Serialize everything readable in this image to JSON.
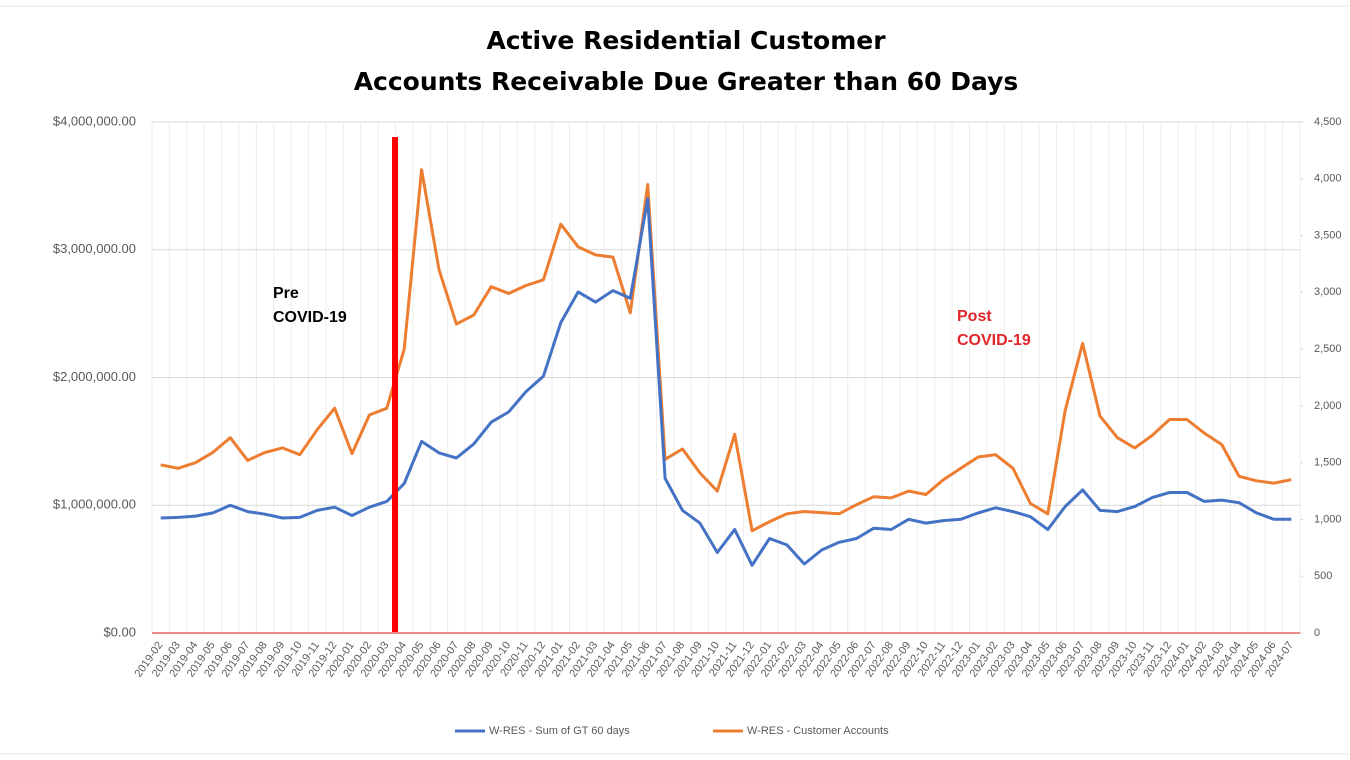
{
  "chart_data": {
    "type": "line",
    "title": [
      "Active Residential Customer",
      "Accounts Receivable Due Greater than 60 Days"
    ],
    "categories": [
      "2019-02",
      "2019-03",
      "2019-04",
      "2019-05",
      "2019-06",
      "2019-07",
      "2019-08",
      "2019-09",
      "2019-10",
      "2019-11",
      "2019-12",
      "2020-01",
      "2020-02",
      "2020-03",
      "2020-04",
      "2020-05",
      "2020-06",
      "2020-07",
      "2020-08",
      "2020-09",
      "2020-10",
      "2020-11",
      "2020-12",
      "2021-01",
      "2021-02",
      "2021-03",
      "2021-04",
      "2021-05",
      "2021-06",
      "2021-07",
      "2021-08",
      "2021-09",
      "2021-10",
      "2021-11",
      "2021-12",
      "2022-01",
      "2022-02",
      "2022-03",
      "2022-04",
      "2022-05",
      "2022-06",
      "2022-07",
      "2022-08",
      "2022-09",
      "2022-10",
      "2022-11",
      "2022-12",
      "2023-01",
      "2023-02",
      "2023-03",
      "2023-04",
      "2023-05",
      "2023-06",
      "2023-07",
      "2023-08",
      "2023-09",
      "2023-10",
      "2023-11",
      "2023-12",
      "2024-01",
      "2024-02",
      "2024-03",
      "2024-04",
      "2024-05",
      "2024-06",
      "2024-07"
    ],
    "series": [
      {
        "name": "W-RES - Sum of GT 60 days",
        "color": "#4472c4",
        "axis": "y",
        "values": [
          900000,
          905000,
          915000,
          940000,
          1000000,
          950000,
          930000,
          900000,
          905000,
          960000,
          985000,
          920000,
          985000,
          1030000,
          1170000,
          1500000,
          1410000,
          1370000,
          1480000,
          1650000,
          1730000,
          1890000,
          2010000,
          2430000,
          2670000,
          2590000,
          2680000,
          2620000,
          3400000,
          1210000,
          960000,
          860000,
          630000,
          810000,
          530000,
          740000,
          690000,
          540000,
          650000,
          710000,
          740000,
          820000,
          810000,
          890000,
          860000,
          880000,
          890000,
          940000,
          980000,
          950000,
          910000,
          810000,
          990000,
          1120000,
          960000,
          950000,
          990000,
          1060000,
          1100000,
          1100000,
          1030000,
          1040000,
          1020000,
          940000,
          890000,
          890000
        ]
      },
      {
        "name": "W-RES - Customer Accounts",
        "color": "#ed7d31",
        "axis": "y2",
        "values": [
          1480,
          1450,
          1500,
          1590,
          1720,
          1520,
          1590,
          1630,
          1570,
          1790,
          1980,
          1580,
          1920,
          1980,
          2500,
          4080,
          3200,
          2720,
          2800,
          3050,
          2990,
          3060,
          3110,
          3600,
          3400,
          3330,
          3310,
          2820,
          3950,
          1530,
          1620,
          1410,
          1250,
          1750,
          900,
          980,
          1050,
          1070,
          1060,
          1050,
          1130,
          1200,
          1190,
          1250,
          1220,
          1350,
          1450,
          1550,
          1570,
          1450,
          1140,
          1050,
          1960,
          2550,
          1910,
          1720,
          1630,
          1740,
          1880,
          1880,
          1760,
          1660,
          1380,
          1340,
          1320,
          1350
        ]
      }
    ],
    "ylim": [
      0,
      4000000
    ],
    "yticks": [
      {
        "value": 0,
        "label": "$0.00"
      },
      {
        "value": 1000000,
        "label": "$1,000,000.00"
      },
      {
        "value": 2000000,
        "label": "$2,000,000.00"
      },
      {
        "value": 3000000,
        "label": "$3,000,000.00"
      },
      {
        "value": 4000000,
        "label": "$4,000,000.00"
      }
    ],
    "y2lim": [
      0,
      4500
    ],
    "y2ticks": [
      0,
      500,
      {
        "value": 1000,
        "label": "1,000"
      },
      {
        "value": 1500,
        "label": "1,500"
      },
      {
        "value": 2000,
        "label": "2,000"
      },
      {
        "value": 2500,
        "label": "2,500"
      },
      {
        "value": 3000,
        "label": "3,000"
      },
      {
        "value": 3500,
        "label": "3,500"
      },
      {
        "value": 4000,
        "label": "4,000"
      },
      {
        "value": 4500,
        "label": "4,500"
      }
    ],
    "grid": true,
    "legend": "bottom",
    "annotations": [
      {
        "lines": [
          "Pre",
          "COVID-19"
        ],
        "color": "#000000"
      },
      {
        "lines": [
          "Post",
          "COVID-19"
        ],
        "color": "#e0262b"
      }
    ]
  }
}
